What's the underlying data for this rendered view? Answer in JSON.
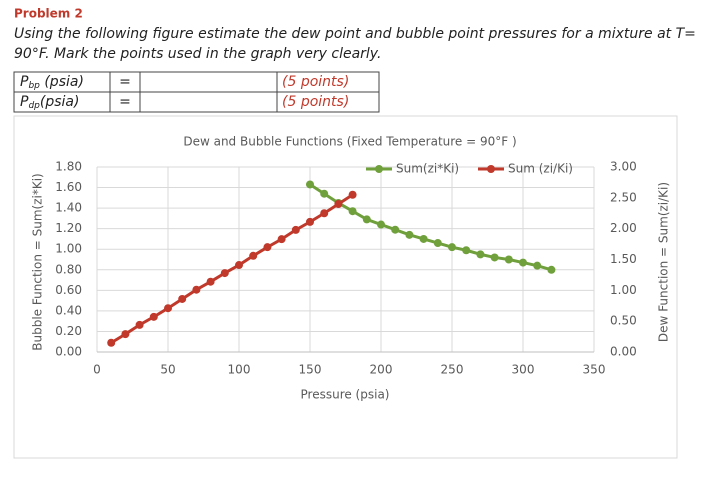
{
  "problem": {
    "title": "Problem 2",
    "lines": [
      "Using the following figure estimate the dew point and bubble point pressures for a mixture at T=",
      "90°F. Mark the points used in the graph very clearly."
    ],
    "table": {
      "rows": [
        {
          "symbol": "P",
          "sub": "bp",
          "unit": " (psia)",
          "eq": "=",
          "points": "(5 points)"
        },
        {
          "symbol": "P",
          "sub": "dp",
          "unit": "(psia)",
          "eq": "=",
          "points": "(5 points)"
        }
      ]
    }
  },
  "chart_data": {
    "type": "line",
    "title": "Dew and Bubble Functions (Fixed Temperature = 90°F )",
    "x_label": "Pressure (psia)",
    "y_label": "Bubble Function = Sum(zi*Ki)",
    "y2_label": "Dew Function = Sum(zi/Ki)",
    "xlim": [
      0,
      350
    ],
    "xticks": [
      0,
      50,
      100,
      150,
      200,
      250,
      300,
      350
    ],
    "ylim": [
      0,
      1.8
    ],
    "yticks": [
      {
        "value": 0,
        "label": "0.00"
      },
      {
        "value": 0.2,
        "label": "0.20"
      },
      {
        "value": 0.4,
        "label": "0.40"
      },
      {
        "value": 0.6,
        "label": "0.60"
      },
      {
        "value": 0.8,
        "label": "0.80"
      },
      {
        "value": 1,
        "label": "1.00"
      },
      {
        "value": 1.2,
        "label": "1.20"
      },
      {
        "value": 1.4,
        "label": "1.40"
      },
      {
        "value": 1.6,
        "label": "1.60"
      },
      {
        "value": 1.8,
        "label": "1.80"
      }
    ],
    "y2lim": [
      0,
      3
    ],
    "y2ticks": [
      {
        "value": 0,
        "label": "0.00"
      },
      {
        "value": 0.5,
        "label": "0.50"
      },
      {
        "value": 1,
        "label": "1.00"
      },
      {
        "value": 1.5,
        "label": "1.50"
      },
      {
        "value": 2,
        "label": "2.00"
      },
      {
        "value": 2.5,
        "label": "2.50"
      },
      {
        "value": 3,
        "label": "3.00"
      }
    ],
    "grid": true,
    "series": [
      {
        "name": "Sum(zi*Ki)",
        "color": "#70a03c",
        "x": [
          150,
          160,
          170,
          180,
          190,
          200,
          210,
          220,
          230,
          240,
          250,
          260,
          270,
          280,
          290,
          300,
          310,
          320
        ],
        "values": [
          1.63,
          1.54,
          1.45,
          1.37,
          1.29,
          1.24,
          1.19,
          1.14,
          1.1,
          1.06,
          1.02,
          0.99,
          0.95,
          0.92,
          0.9,
          0.87,
          0.84,
          0.8
        ]
      },
      {
        "name": "Sum (zi/Ki)",
        "color": "#c0392b",
        "axis": "y2",
        "x": [
          10,
          20,
          30,
          40,
          50,
          60,
          70,
          80,
          90,
          100,
          110,
          120,
          130,
          140,
          150,
          160,
          170,
          180
        ],
        "values": [
          0.15,
          0.29,
          0.44,
          0.57,
          0.71,
          0.86,
          1.01,
          1.14,
          1.28,
          1.41,
          1.56,
          1.7,
          1.83,
          1.98,
          2.11,
          2.25,
          2.4,
          2.55
        ]
      }
    ]
  }
}
